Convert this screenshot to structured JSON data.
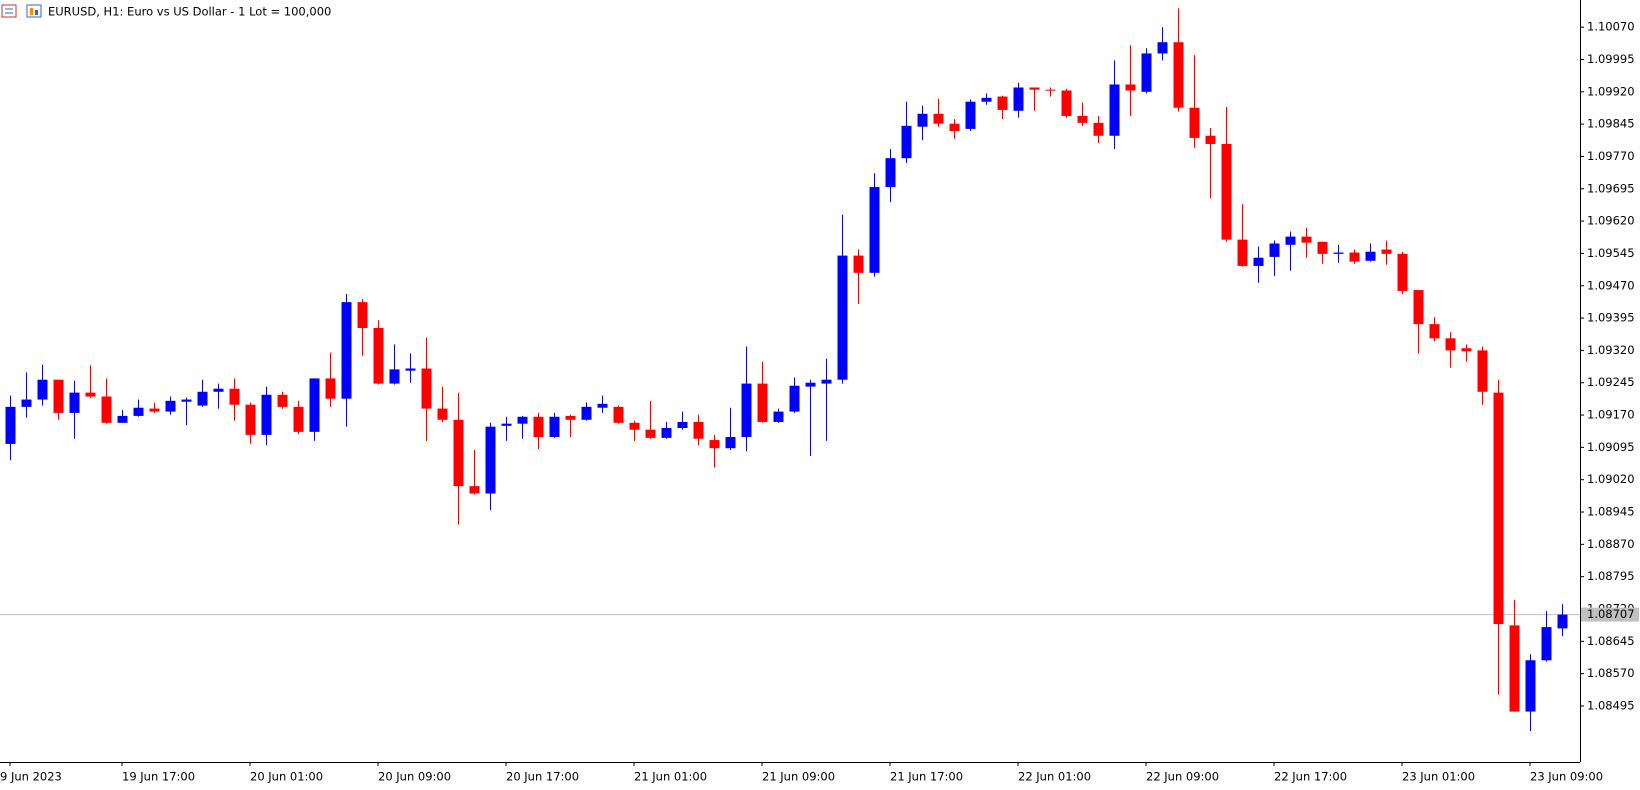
{
  "chart_data": {
    "type": "candlestick",
    "title": "EURUSD, H1:  Euro vs US Dollar - 1 Lot = 100,000",
    "categories": [
      "9 Jun 2023",
      null,
      null,
      null,
      null,
      null,
      null,
      "19 Jun 17:00",
      null,
      null,
      null,
      null,
      null,
      null,
      null,
      "20 Jun 01:00",
      null,
      null,
      null,
      null,
      null,
      null,
      null,
      "20 Jun 09:00",
      null,
      null,
      null,
      null,
      null,
      null,
      null,
      "20 Jun 17:00",
      null,
      null,
      null,
      null,
      null,
      null,
      null,
      "21 Jun 01:00",
      null,
      null,
      null,
      null,
      null,
      null,
      null,
      "21 Jun 09:00",
      null,
      null,
      null,
      null,
      null,
      null,
      null,
      "21 Jun 17:00",
      null,
      null,
      null,
      null,
      null,
      null,
      null,
      "22 Jun 01:00",
      null,
      null,
      null,
      null,
      null,
      null,
      null,
      "22 Jun 09:00",
      null,
      null,
      null,
      null,
      null,
      null,
      null,
      "22 Jun 17:00",
      null,
      null,
      null,
      null,
      null,
      null,
      null,
      "23 Jun 01:00",
      null,
      null,
      null,
      null,
      null,
      null,
      null,
      "23 Jun 09:00",
      null,
      null
    ],
    "open": [
      1.09103,
      1.09189,
      1.09206,
      1.09252,
      1.09175,
      1.09222,
      1.09213,
      1.09152,
      1.09168,
      1.09185,
      1.09178,
      1.09201,
      1.09192,
      1.09224,
      1.09231,
      1.09194,
      1.09124,
      1.09217,
      1.09189,
      1.09131,
      1.09255,
      1.09208,
      1.09432,
      1.09372,
      1.09243,
      1.09273,
      1.09278,
      1.09185,
      1.09159,
      1.09005,
      1.08988,
      1.09145,
      1.0915,
      1.09166,
      1.09119,
      1.09168,
      1.09159,
      1.09187,
      1.09189,
      1.09152,
      1.09136,
      1.09117,
      1.0914,
      1.09154,
      1.09112,
      1.09093,
      1.09119,
      1.09243,
      1.09154,
      1.09178,
      1.09236,
      1.09243,
      1.09252,
      1.0954,
      1.095,
      1.09699,
      1.09766,
      1.09839,
      1.09869,
      1.09846,
      1.09834,
      1.09897,
      1.09909,
      1.09876,
      1.0993,
      1.09925,
      1.09923,
      1.09864,
      1.09848,
      1.09818,
      1.09937,
      1.0992,
      1.10009,
      1.10035,
      1.09883,
      1.09818,
      1.09799,
      1.09577,
      1.09516,
      1.09537,
      1.09565,
      1.09584,
      1.09572,
      1.09544,
      1.09547,
      1.09528,
      1.09554,
      1.09544,
      1.0946,
      1.09381,
      1.09348,
      1.09325,
      1.0932,
      1.09222,
      1.08682,
      1.08482,
      1.08601,
      1.08675
    ],
    "high": [
      1.09215,
      1.09269,
      1.09287,
      1.09252,
      1.0925,
      1.09285,
      1.09255,
      1.09182,
      1.09206,
      1.09199,
      1.09213,
      1.0921,
      1.09252,
      1.09243,
      1.09255,
      1.09199,
      1.09236,
      1.09224,
      1.09203,
      1.09255,
      1.09315,
      1.09451,
      1.09439,
      1.0939,
      1.09334,
      1.09313,
      1.0935,
      1.09236,
      1.09222,
      1.09089,
      1.09152,
      1.09166,
      1.09168,
      1.09175,
      1.09175,
      1.09171,
      1.09199,
      1.09215,
      1.09192,
      1.09157,
      1.09203,
      1.09154,
      1.09178,
      1.09171,
      1.09124,
      1.09187,
      1.09329,
      1.09294,
      1.09185,
      1.09257,
      1.09252,
      1.09301,
      1.09635,
      1.09554,
      1.09731,
      1.09787,
      1.09897,
      1.09888,
      1.09904,
      1.09857,
      1.09902,
      1.09916,
      1.09911,
      1.09941,
      1.0993,
      1.0993,
      1.09927,
      1.09895,
      1.09864,
      1.09993,
      1.10028,
      1.10021,
      1.1007,
      1.10114,
      1.10005,
      1.09836,
      1.09885,
      1.09659,
      1.09561,
      1.09575,
      1.09596,
      1.09605,
      1.09572,
      1.09565,
      1.09554,
      1.09568,
      1.09575,
      1.09549,
      1.0946,
      1.09397,
      1.09362,
      1.09334,
      1.09329,
      1.09252,
      1.08741,
      1.08615,
      1.08715,
      1.08731
    ],
    "low": [
      1.09065,
      1.09164,
      1.09192,
      1.09159,
      1.09115,
      1.0921,
      1.0915,
      1.09152,
      1.09166,
      1.09175,
      1.09171,
      1.09147,
      1.09189,
      1.09185,
      1.09157,
      1.09103,
      1.091,
      1.09185,
      1.09126,
      1.0911,
      1.09189,
      1.09143,
      1.09308,
      1.09241,
      1.09241,
      1.09245,
      1.0911,
      1.09154,
      1.08916,
      1.08986,
      1.08949,
      1.0911,
      1.09115,
      1.09091,
      1.09117,
      1.09119,
      1.09157,
      1.09175,
      1.0915,
      1.0911,
      1.09115,
      1.09115,
      1.09136,
      1.091,
      1.09049,
      1.09089,
      1.09086,
      1.09152,
      1.09152,
      1.09175,
      1.09075,
      1.0911,
      1.09243,
      1.09428,
      1.09491,
      1.09664,
      1.09755,
      1.09808,
      1.09839,
      1.09811,
      1.09829,
      1.0989,
      1.09857,
      1.0986,
      1.09876,
      1.09909,
      1.0986,
      1.09841,
      1.09801,
      1.09787,
      1.09864,
      1.09916,
      1.09993,
      1.09874,
      1.0979,
      1.09673,
      1.09572,
      1.09514,
      1.09477,
      1.09493,
      1.09505,
      1.09535,
      1.09521,
      1.09523,
      1.09521,
      1.09526,
      1.09519,
      1.09451,
      1.09313,
      1.09341,
      1.0928,
      1.09294,
      1.09194,
      1.08521,
      1.08482,
      1.08437,
      1.08598,
      1.08657
    ],
    "close": [
      1.09189,
      1.09206,
      1.09252,
      1.09175,
      1.09222,
      1.09213,
      1.09152,
      1.09168,
      1.09187,
      1.09178,
      1.09203,
      1.09206,
      1.09224,
      1.09231,
      1.09194,
      1.09124,
      1.09217,
      1.09189,
      1.09131,
      1.09255,
      1.09208,
      1.09432,
      1.09372,
      1.09243,
      1.09276,
      1.09278,
      1.09185,
      1.09159,
      1.09005,
      1.08988,
      1.09143,
      1.0915,
      1.09166,
      1.09119,
      1.09166,
      1.09159,
      1.09189,
      1.09196,
      1.09152,
      1.09136,
      1.09117,
      1.0914,
      1.09154,
      1.09115,
      1.09093,
      1.09119,
      1.09243,
      1.09154,
      1.09178,
      1.09238,
      1.09245,
      1.09252,
      1.0954,
      1.095,
      1.09699,
      1.09766,
      1.09841,
      1.09869,
      1.09846,
      1.09829,
      1.09897,
      1.09906,
      1.09878,
      1.0993,
      1.09925,
      1.09923,
      1.09864,
      1.09848,
      1.09818,
      1.09937,
      1.09923,
      1.10009,
      1.10035,
      1.09883,
      1.09813,
      1.09799,
      1.09577,
      1.09516,
      1.09535,
      1.09568,
      1.09584,
      1.0957,
      1.09544,
      1.09547,
      1.09526,
      1.09549,
      1.09544,
      1.09458,
      1.09381,
      1.09348,
      1.0932,
      1.09318,
      1.09224,
      1.08685,
      1.08482,
      1.08601,
      1.08678,
      1.08707
    ],
    "up_color": "#0000ff",
    "down_color": "#ff0000",
    "current_price": 1.08707,
    "current_price_color": "#c0c0c0",
    "ylim": [
      1.08365,
      1.10133
    ],
    "yticks": [
      {
        "value": 1.1007,
        "label": "1.10070"
      },
      1.09995,
      {
        "value": 1.0992,
        "label": "1.09920"
      },
      1.09845,
      {
        "value": 1.0977,
        "label": "1.09770"
      },
      1.09695,
      {
        "value": 1.0962,
        "label": "1.09620"
      },
      1.09545,
      {
        "value": 1.0947,
        "label": "1.09470"
      },
      1.09395,
      {
        "value": 1.0932,
        "label": "1.09320"
      },
      1.09245,
      {
        "value": 1.0917,
        "label": "1.09170"
      },
      1.09095,
      {
        "value": 1.0902,
        "label": "1.09020"
      },
      1.08945,
      {
        "value": 1.0887,
        "label": "1.08870"
      },
      1.08795,
      {
        "value": 1.0872,
        "label": "1.08720"
      },
      1.08645,
      {
        "value": 1.0857,
        "label": "1.08570"
      },
      1.08495
    ],
    "grid": false
  }
}
